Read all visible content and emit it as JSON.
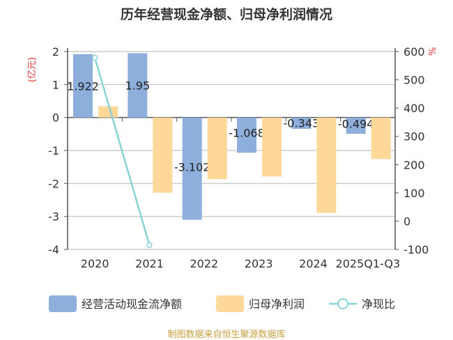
{
  "chart_data": {
    "type": "bar",
    "title": "历年经营现金净额、归母净利润情况",
    "ylabel": "(亿元)",
    "ylabel_right": "%",
    "categories": [
      "2020",
      "2021",
      "2022",
      "2023",
      "2024",
      "2025Q1-Q3"
    ],
    "ylim": [
      -4,
      2
    ],
    "yticks": [
      2,
      1,
      0,
      -1,
      -2,
      -3,
      -4
    ],
    "ylim_right": [
      -100,
      600
    ],
    "yticks_right": [
      600,
      500,
      400,
      300,
      200,
      100,
      0,
      -100
    ],
    "grid": true,
    "legend_position": "bottom",
    "series": [
      {
        "name": "经营活动现金流净额",
        "type": "bar",
        "axis": "left",
        "color": "#8eaedb",
        "values": [
          1.922,
          1.95,
          -3.102,
          -1.068,
          -0.343,
          -0.494
        ],
        "labels": [
          "1.922",
          "1.95",
          "-3.102",
          "-1.068",
          "-0.343",
          "-0.494"
        ]
      },
      {
        "name": "归母净利润",
        "type": "bar",
        "axis": "left",
        "color": "#fed898",
        "values": [
          0.34,
          -2.28,
          -1.87,
          -1.79,
          -2.89,
          -1.26
        ]
      },
      {
        "name": "净现比",
        "type": "line",
        "axis": "right",
        "color": "#88d3d6",
        "values": [
          578,
          -85,
          null,
          null,
          null,
          null
        ]
      }
    ]
  },
  "source": "制图数据来自恒生聚源数据库"
}
